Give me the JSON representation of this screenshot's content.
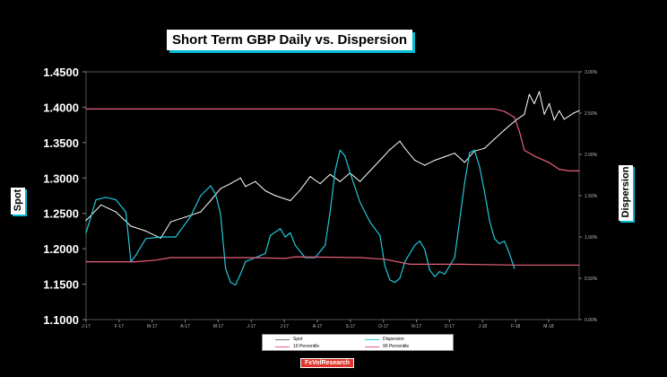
{
  "chart_data": {
    "type": "line",
    "title": "Short Term GBP Daily vs. Dispersion",
    "ylabel": "Spot",
    "y2label": "Dispersion",
    "ylim": [
      1.1,
      1.45
    ],
    "y2lim": [
      0.0,
      3.0
    ],
    "y_ticks": [
      "1.1000",
      "1.1500",
      "1.2000",
      "1.2500",
      "1.3000",
      "1.3500",
      "1.4000",
      "1.4500"
    ],
    "y2_ticks": [
      "0.00%",
      "0.50%",
      "1.00%",
      "1.50%",
      "2.00%",
      "2.50%",
      "3.00%"
    ],
    "x_ticks": [
      "J-17",
      "F-17",
      "M-17",
      "A-17",
      "M-17",
      "J-17",
      "J-17",
      "A-17",
      "S-17",
      "O-17",
      "N-17",
      "D-17",
      "J-18",
      "F-18",
      "M-18"
    ],
    "legend_position": "bottom",
    "series": [
      {
        "name": "Spot",
        "axis": "left",
        "color": "#ffffff",
        "points": [
          [
            0,
            1.24
          ],
          [
            3,
            1.262
          ],
          [
            6,
            1.252
          ],
          [
            9,
            1.232
          ],
          [
            12,
            1.225
          ],
          [
            15,
            1.215
          ],
          [
            17,
            1.238
          ],
          [
            20,
            1.245
          ],
          [
            23,
            1.252
          ],
          [
            25,
            1.268
          ],
          [
            27,
            1.285
          ],
          [
            29,
            1.292
          ],
          [
            31,
            1.3
          ],
          [
            32,
            1.288
          ],
          [
            34,
            1.295
          ],
          [
            36,
            1.282
          ],
          [
            38,
            1.275
          ],
          [
            41,
            1.268
          ],
          [
            43,
            1.283
          ],
          [
            45,
            1.302
          ],
          [
            47,
            1.292
          ],
          [
            49,
            1.305
          ],
          [
            51,
            1.295
          ],
          [
            53,
            1.307
          ],
          [
            55,
            1.295
          ],
          [
            57,
            1.31
          ],
          [
            59,
            1.325
          ],
          [
            61,
            1.34
          ],
          [
            63,
            1.352
          ],
          [
            64,
            1.342
          ],
          [
            66,
            1.325
          ],
          [
            68,
            1.318
          ],
          [
            70,
            1.325
          ],
          [
            72,
            1.33
          ],
          [
            74,
            1.335
          ],
          [
            76,
            1.322
          ],
          [
            78,
            1.338
          ],
          [
            80,
            1.342
          ],
          [
            82,
            1.355
          ],
          [
            84,
            1.368
          ],
          [
            86,
            1.38
          ],
          [
            88,
            1.39
          ],
          [
            89,
            1.418
          ],
          [
            90,
            1.405
          ],
          [
            91,
            1.422
          ],
          [
            92,
            1.39
          ],
          [
            93,
            1.405
          ],
          [
            94,
            1.382
          ],
          [
            95,
            1.395
          ],
          [
            96,
            1.383
          ],
          [
            98,
            1.392
          ],
          [
            99,
            1.395
          ]
        ]
      },
      {
        "name": "Dispersion",
        "axis": "right",
        "color": "#21c8d8",
        "points": [
          [
            0,
            1.05
          ],
          [
            2,
            1.45
          ],
          [
            4,
            1.48
          ],
          [
            6,
            1.45
          ],
          [
            8,
            1.3
          ],
          [
            9,
            0.7
          ],
          [
            10,
            0.78
          ],
          [
            12,
            0.98
          ],
          [
            15,
            1.0
          ],
          [
            18,
            1.0
          ],
          [
            21,
            1.25
          ],
          [
            23,
            1.5
          ],
          [
            25,
            1.62
          ],
          [
            26,
            1.52
          ],
          [
            27,
            1.28
          ],
          [
            28,
            0.62
          ],
          [
            29,
            0.45
          ],
          [
            30,
            0.42
          ],
          [
            31,
            0.55
          ],
          [
            32,
            0.7
          ],
          [
            34,
            0.75
          ],
          [
            36,
            0.8
          ],
          [
            37,
            1.02
          ],
          [
            39,
            1.1
          ],
          [
            40,
            1.0
          ],
          [
            41,
            1.05
          ],
          [
            42,
            0.9
          ],
          [
            44,
            0.75
          ],
          [
            46,
            0.75
          ],
          [
            48,
            0.9
          ],
          [
            49,
            1.3
          ],
          [
            50,
            1.8
          ],
          [
            51,
            2.05
          ],
          [
            52,
            1.98
          ],
          [
            53,
            1.78
          ],
          [
            55,
            1.42
          ],
          [
            57,
            1.18
          ],
          [
            59,
            1.02
          ],
          [
            60,
            0.65
          ],
          [
            61,
            0.48
          ],
          [
            62,
            0.45
          ],
          [
            63,
            0.5
          ],
          [
            64,
            0.7
          ],
          [
            66,
            0.9
          ],
          [
            67,
            0.95
          ],
          [
            68,
            0.85
          ],
          [
            69,
            0.6
          ],
          [
            70,
            0.52
          ],
          [
            71,
            0.58
          ],
          [
            72,
            0.55
          ],
          [
            74,
            0.75
          ],
          [
            75,
            1.2
          ],
          [
            76,
            1.65
          ],
          [
            77,
            2.02
          ],
          [
            78,
            2.05
          ],
          [
            79,
            1.85
          ],
          [
            80,
            1.55
          ],
          [
            81,
            1.2
          ],
          [
            82,
            0.98
          ],
          [
            83,
            0.92
          ],
          [
            84,
            0.95
          ],
          [
            85,
            0.8
          ],
          [
            86,
            0.62
          ]
        ]
      },
      {
        "name": "10 Percentile",
        "axis": "right",
        "color": "#e8607a",
        "points": [
          [
            0,
            0.7
          ],
          [
            10,
            0.7
          ],
          [
            14,
            0.72
          ],
          [
            17,
            0.75
          ],
          [
            33,
            0.75
          ],
          [
            40,
            0.74
          ],
          [
            42,
            0.76
          ],
          [
            55,
            0.75
          ],
          [
            60,
            0.73
          ],
          [
            65,
            0.67
          ],
          [
            75,
            0.67
          ],
          [
            86,
            0.66
          ],
          [
            99,
            0.66
          ]
        ]
      },
      {
        "name": "90 Percentile",
        "axis": "right",
        "color": "#e8607a",
        "points": [
          [
            0,
            2.55
          ],
          [
            82,
            2.55
          ],
          [
            84,
            2.52
          ],
          [
            86,
            2.45
          ],
          [
            87,
            2.28
          ],
          [
            88,
            2.05
          ],
          [
            90,
            1.98
          ],
          [
            93,
            1.9
          ],
          [
            95,
            1.82
          ],
          [
            97,
            1.8
          ],
          [
            99,
            1.8
          ]
        ]
      }
    ]
  },
  "legend": {
    "items": [
      {
        "label": "Spot",
        "color": "#777777"
      },
      {
        "label": "Dispersion",
        "color": "#21c8d8"
      },
      {
        "label": "10 Percentile",
        "color": "#e8607a"
      },
      {
        "label": "90 Percentile",
        "color": "#e8607a"
      }
    ]
  },
  "footer": {
    "label": "FxVolResearch"
  }
}
